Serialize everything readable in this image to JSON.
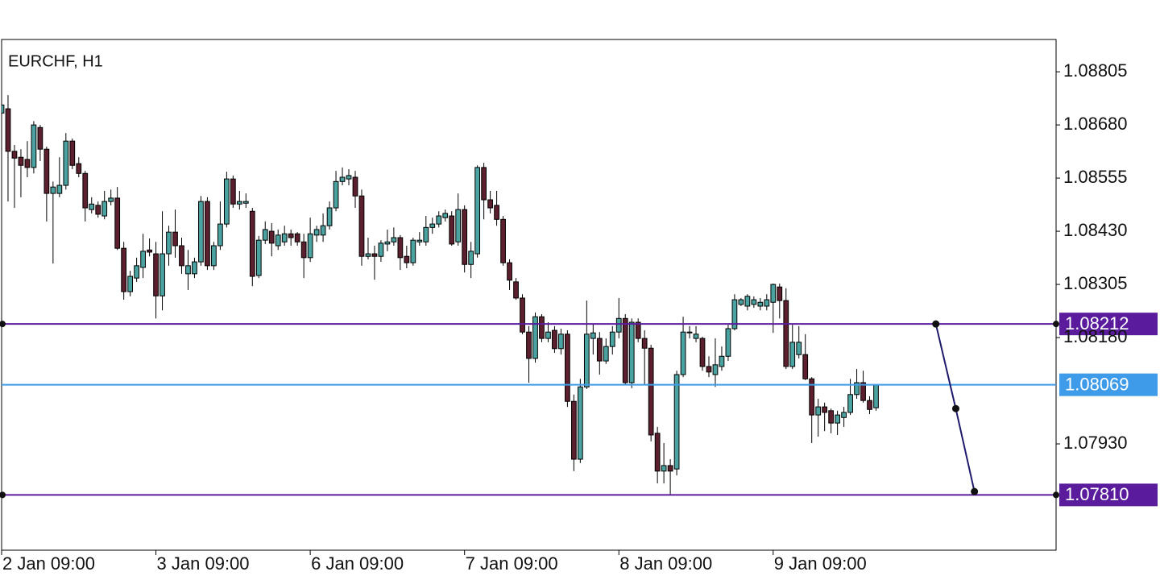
{
  "chart_data": {
    "type": "candlestick",
    "title": "EURCHF, H1",
    "up_color": "#4aa3a0",
    "down_color": "#5c1f2e",
    "outline_color": "#000000",
    "grid": false,
    "xlim": [
      0,
      164
    ],
    "xticks": [
      {
        "value": 0,
        "label": "2 Jan 09:00"
      },
      {
        "value": 24,
        "label": "3 Jan 09:00"
      },
      {
        "value": 48,
        "label": "6 Jan 09:00"
      },
      {
        "value": 72,
        "label": "7 Jan 09:00"
      },
      {
        "value": 96,
        "label": "8 Jan 09:00"
      },
      {
        "value": 120,
        "label": "9 Jan 09:00"
      }
    ],
    "ylim": [
      1.0768,
      1.08881
    ],
    "yticks": [
      {
        "value": 1.08805,
        "label": "1.08805"
      },
      {
        "value": 1.0868,
        "label": "1.08680"
      },
      {
        "value": 1.08555,
        "label": "1.08555"
      },
      {
        "value": 1.0843,
        "label": "1.08430"
      },
      {
        "value": 1.08305,
        "label": "1.08305"
      },
      {
        "value": 1.0818,
        "label": "1.08180"
      },
      {
        "value": 1.0793,
        "label": "1.07930"
      }
    ],
    "open": [
      1.08708,
      1.08718,
      1.08618,
      1.08604,
      1.08599,
      1.0858,
      1.08674,
      1.08623,
      1.08519,
      1.08519,
      1.08538,
      1.08642,
      1.08589,
      1.08566,
      1.08481,
      1.08491,
      1.08466,
      1.085,
      1.08508,
      1.0839,
      1.08288,
      1.0832,
      1.08345,
      1.08386,
      1.08377,
      1.08278,
      1.08377,
      1.08428,
      1.08396,
      1.0833,
      1.0833,
      1.08358,
      1.085,
      1.08349,
      1.08396,
      1.08447,
      1.08553,
      1.08494,
      1.08496,
      1.08477,
      1.08326,
      1.08409,
      1.0843,
      1.08396,
      1.08405,
      1.08424,
      1.08424,
      1.08405,
      1.08368,
      1.08421,
      1.08421,
      1.08443,
      1.08485,
      1.08547,
      1.08553,
      1.08557,
      1.08513,
      1.08371,
      1.08377,
      1.08371,
      1.084,
      1.08405,
      1.08415,
      1.08371,
      1.08356,
      1.08405,
      1.08405,
      1.08439,
      1.08447,
      1.08462,
      1.08466,
      1.08405,
      1.08481,
      1.08352,
      1.08377,
      1.0858,
      1.08504,
      1.08491,
      1.08458,
      1.08356,
      1.08311,
      1.08273,
      1.08193,
      1.08131,
      1.08229,
      1.08178,
      1.08197,
      1.08154,
      1.08188,
      1.0803,
      1.07894,
      1.08064,
      1.08178,
      1.08178,
      1.08125,
      1.08159,
      1.08193,
      1.08225,
      1.08074,
      1.08216,
      1.08178,
      1.08155,
      1.07955,
      1.07866,
      1.07879,
      1.07871,
      1.08093,
      1.08191,
      1.08178,
      1.08178,
      1.08112,
      1.08093,
      1.08112,
      1.08136,
      1.08201,
      1.08258,
      1.08254,
      1.08258,
      1.08254,
      1.08254,
      1.08263,
      1.08299,
      1.08267,
      1.08112,
      1.0814,
      1.0814,
      1.08083,
      1.07998,
      1.08017,
      1.08008,
      1.07979,
      1.07992,
      1.08004,
      1.08046,
      1.08074,
      1.08032,
      1.08015
    ],
    "high": [
      1.08746,
      1.0875,
      1.08633,
      1.08623,
      1.08642,
      1.08689,
      1.0868,
      1.08629,
      1.08547,
      1.08604,
      1.08661,
      1.08648,
      1.08604,
      1.08572,
      1.0851,
      1.085,
      1.08525,
      1.08528,
      1.08534,
      1.08405,
      1.08337,
      1.08368,
      1.08424,
      1.08413,
      1.08405,
      1.08477,
      1.08443,
      1.08481,
      1.08415,
      1.08386,
      1.08368,
      1.08513,
      1.0851,
      1.08405,
      1.085,
      1.0857,
      1.08561,
      1.08525,
      1.08519,
      1.08485,
      1.08419,
      1.08453,
      1.08449,
      1.08434,
      1.08443,
      1.08434,
      1.08428,
      1.08424,
      1.08462,
      1.08443,
      1.08472,
      1.085,
      1.08572,
      1.0858,
      1.08576,
      1.08572,
      1.08528,
      1.08415,
      1.08396,
      1.08409,
      1.08434,
      1.08439,
      1.08421,
      1.08396,
      1.08415,
      1.08428,
      1.08466,
      1.08462,
      1.08477,
      1.08481,
      1.08477,
      1.08519,
      1.08491,
      1.08405,
      1.08585,
      1.08591,
      1.08525,
      1.08525,
      1.08466,
      1.08364,
      1.0832,
      1.08282,
      1.08207,
      1.08239,
      1.08235,
      1.08216,
      1.08207,
      1.08201,
      1.08197,
      1.08046,
      1.08083,
      1.08267,
      1.08212,
      1.08193,
      1.08178,
      1.08207,
      1.08273,
      1.08235,
      1.08225,
      1.08225,
      1.08197,
      1.08163,
      1.0797,
      1.07932,
      1.07894,
      1.08102,
      1.08229,
      1.08207,
      1.08207,
      1.08182,
      1.08136,
      1.08178,
      1.08159,
      1.0821,
      1.08282,
      1.08273,
      1.08282,
      1.08277,
      1.08273,
      1.08282,
      1.08307,
      1.08307,
      1.08296,
      1.0821,
      1.08207,
      1.08188,
      1.08087,
      1.08036,
      1.08027,
      1.08013,
      1.08008,
      1.08017,
      1.08083,
      1.08106,
      1.08102,
      1.08042,
      1.08069
    ],
    "low": [
      1.08699,
      1.085,
      1.08485,
      1.0851,
      1.08557,
      1.08566,
      1.08595,
      1.08453,
      1.08354,
      1.0851,
      1.08528,
      1.08576,
      1.08557,
      1.08453,
      1.08472,
      1.08462,
      1.08458,
      1.08491,
      1.08386,
      1.08269,
      1.08277,
      1.08311,
      1.0832,
      1.08371,
      1.08225,
      1.08244,
      1.08349,
      1.08368,
      1.0833,
      1.08292,
      1.0832,
      1.08349,
      1.08339,
      1.08339,
      1.08386,
      1.08439,
      1.08485,
      1.08481,
      1.08485,
      1.08301,
      1.0832,
      1.084,
      1.08371,
      1.08386,
      1.08396,
      1.08396,
      1.08396,
      1.0832,
      1.08358,
      1.08405,
      1.08405,
      1.08434,
      1.08477,
      1.08538,
      1.08538,
      1.08485,
      1.08349,
      1.08364,
      1.08316,
      1.08358,
      1.08383,
      1.08396,
      1.08339,
      1.08343,
      1.08349,
      1.08396,
      1.08396,
      1.08424,
      1.08439,
      1.08453,
      1.08396,
      1.08396,
      1.08333,
      1.0832,
      1.08368,
      1.08458,
      1.08472,
      1.08443,
      1.08349,
      1.08292,
      1.08269,
      1.08188,
      1.08074,
      1.08121,
      1.08169,
      1.08169,
      1.08144,
      1.0814,
      1.08017,
      1.07866,
      1.07885,
      1.08059,
      1.0814,
      1.08093,
      1.08118,
      1.0814,
      1.08178,
      1.08068,
      1.08061,
      1.08169,
      1.08068,
      1.07936,
      1.07837,
      1.07837,
      1.07811,
      1.07856,
      1.08087,
      1.08178,
      1.08169,
      1.08102,
      1.08087,
      1.08064,
      1.08102,
      1.08125,
      1.08197,
      1.08254,
      1.08244,
      1.0825,
      1.08244,
      1.08244,
      1.08191,
      1.08225,
      1.08106,
      1.08106,
      1.08131,
      1.0808,
      1.07932,
      1.07947,
      1.0796,
      1.07955,
      1.07951,
      1.0797,
      1.07998,
      1.08036,
      1.08027,
      1.08,
      1.08008
    ],
    "close": [
      1.08727,
      1.08618,
      1.08602,
      1.08585,
      1.0858,
      1.0868,
      1.08623,
      1.08519,
      1.08534,
      1.08538,
      1.08642,
      1.08585,
      1.08566,
      1.08485,
      1.08494,
      1.0847,
      1.085,
      1.08508,
      1.0839,
      1.08288,
      1.08324,
      1.08349,
      1.08383,
      1.08381,
      1.08278,
      1.08377,
      1.08428,
      1.08396,
      1.08349,
      1.08349,
      1.08358,
      1.085,
      1.08349,
      1.08396,
      1.08447,
      1.08553,
      1.08494,
      1.085,
      1.085,
      1.08324,
      1.08409,
      1.08434,
      1.08402,
      1.08421,
      1.08424,
      1.08415,
      1.08405,
      1.08368,
      1.08424,
      1.08434,
      1.08443,
      1.08485,
      1.08547,
      1.08557,
      1.08561,
      1.08513,
      1.08371,
      1.08377,
      1.08371,
      1.08402,
      1.08405,
      1.08415,
      1.08368,
      1.08356,
      1.08409,
      1.08409,
      1.08439,
      1.08447,
      1.08466,
      1.08472,
      1.084,
      1.08481,
      1.08352,
      1.08383,
      1.0858,
      1.08504,
      1.08485,
      1.08458,
      1.08356,
      1.08315,
      1.08273,
      1.08193,
      1.08131,
      1.08229,
      1.08178,
      1.08193,
      1.08154,
      1.08188,
      1.0803,
      1.07894,
      1.08064,
      1.08188,
      1.08191,
      1.08125,
      1.08159,
      1.08193,
      1.08225,
      1.08074,
      1.08216,
      1.08178,
      1.08155,
      1.07951,
      1.07866,
      1.07879,
      1.07866,
      1.08093,
      1.08193,
      1.08193,
      1.08188,
      1.08112,
      1.08099,
      1.08116,
      1.08136,
      1.08201,
      1.08269,
      1.08269,
      1.08277,
      1.08269,
      1.08263,
      1.08269,
      1.08305,
      1.08267,
      1.08112,
      1.08169,
      1.08169,
      1.08083,
      1.07998,
      1.08017,
      1.08004,
      1.07979,
      1.07998,
      1.08004,
      1.08046,
      1.08074,
      1.08032,
      1.08011,
      1.08069
    ],
    "hlines": [
      {
        "value": 1.08212,
        "label": "1.08212",
        "color": "#5a1c9c"
      },
      {
        "value": 1.08069,
        "label": "1.08069",
        "color": "#3d9be9"
      },
      {
        "value": 1.0781,
        "label": "1.07810",
        "color": "#5a1c9c"
      }
    ],
    "trendline": {
      "x": [
        145.3,
        148.4,
        151.3
      ],
      "y": [
        1.08212,
        1.08013,
        1.07818
      ],
      "color": "#1e1a6e"
    }
  }
}
